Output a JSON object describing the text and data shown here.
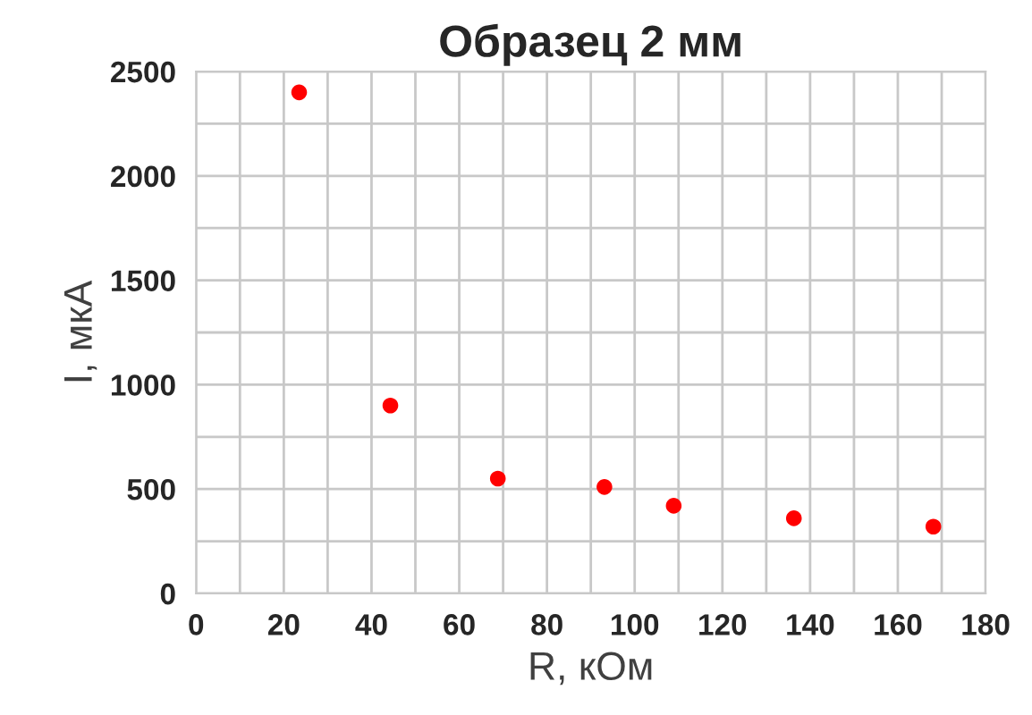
{
  "chart_data": {
    "type": "scatter",
    "title": "Образец 2 мм",
    "xlabel": "R, кОм",
    "ylabel": "I, мкА",
    "x": [
      23.5,
      44.3,
      68.8,
      93.1,
      108.9,
      136.3,
      168.1
    ],
    "series": [
      {
        "color": "#ff0000",
        "values": [
          2400,
          900,
          550,
          510,
          420,
          360,
          320
        ]
      }
    ],
    "xlim": [
      0,
      180
    ],
    "xticks": [
      0,
      {
        "value": 10,
        "label": null
      },
      20,
      {
        "value": 30,
        "label": null
      },
      40,
      {
        "value": 50,
        "label": null
      },
      60,
      {
        "value": 70,
        "label": null
      },
      80,
      {
        "value": 90,
        "label": null
      },
      100,
      {
        "value": 110,
        "label": null
      },
      120,
      {
        "value": 130,
        "label": null
      },
      140,
      {
        "value": 150,
        "label": null
      },
      160,
      {
        "value": 170,
        "label": null
      },
      180
    ],
    "ylim": [
      0,
      2500
    ],
    "yticks": [
      0,
      {
        "value": 250,
        "label": null
      },
      500,
      {
        "value": 750,
        "label": null
      },
      1000,
      {
        "value": 1250,
        "label": null
      },
      1500,
      {
        "value": 1750,
        "label": null
      },
      2000,
      {
        "value": 2250,
        "label": null
      },
      2500
    ],
    "grid": true,
    "marker": "circle"
  }
}
